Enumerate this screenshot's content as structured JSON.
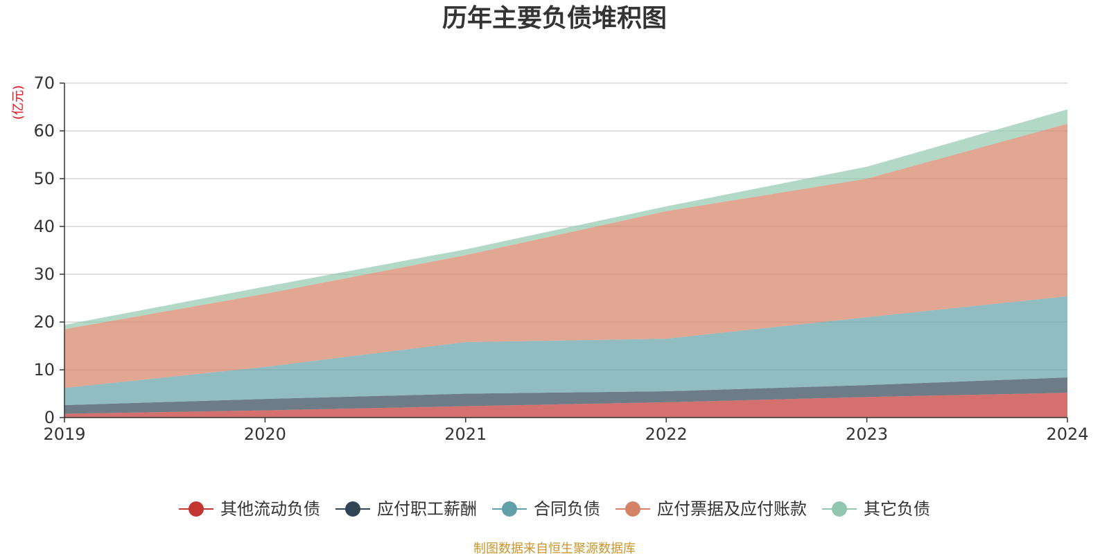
{
  "chart_data": {
    "type": "area",
    "stacked": true,
    "title": "历年主要负债堆积图",
    "unit": "(亿元)",
    "categories": [
      "2019",
      "2020",
      "2021",
      "2022",
      "2023",
      "2024"
    ],
    "ylim": [
      0,
      70
    ],
    "yticks": [
      "0",
      "10",
      "20",
      "30",
      "40",
      "50",
      "60",
      "70"
    ],
    "grid": true,
    "legend_position": "bottom",
    "series": [
      {
        "name": "其他流动负债",
        "color": "#c23531",
        "values": [
          0.8,
          1.5,
          2.4,
          3.2,
          4.3,
          5.2
        ]
      },
      {
        "name": "应付职工薪酬",
        "color": "#2f4554",
        "values": [
          1.8,
          2.4,
          2.6,
          2.3,
          2.5,
          3.2
        ]
      },
      {
        "name": "合同负债",
        "color": "#61a0a8",
        "values": [
          3.6,
          6.7,
          10.8,
          11.0,
          14.2,
          17.0
        ]
      },
      {
        "name": "应付票据及应付账款",
        "color": "#d48265",
        "values": [
          12.3,
          15.3,
          18.2,
          26.7,
          29.0,
          36.1
        ]
      },
      {
        "name": "其它负债",
        "color": "#91c7ae",
        "values": [
          0.9,
          1.5,
          1.2,
          1.0,
          2.5,
          3.0
        ]
      }
    ]
  },
  "source": "制图数据来自恒生聚源数据库"
}
